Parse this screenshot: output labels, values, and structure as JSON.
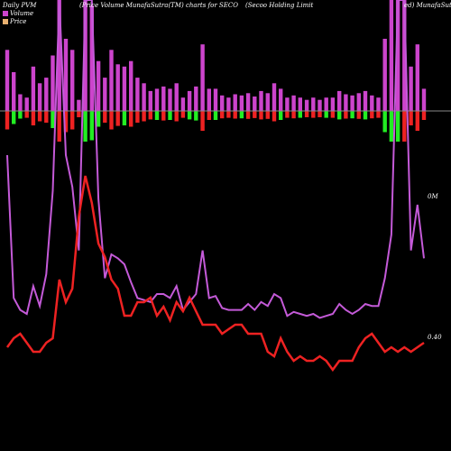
{
  "header": {
    "left": "Daily PVM",
    "center": "(Price Volume MunafaSutra(TM) charts for SECO",
    "right": "(Secoo Holding Limit",
    "far_right": "ed) MunafaSutra"
  },
  "legend": {
    "volume": "Volume",
    "price": "Price"
  },
  "labels": {
    "volume_end": "0M",
    "price_end": "0.40"
  },
  "colors": {
    "background": "#000000",
    "volume": "#cc44cc",
    "volume_line": "#c45ad8",
    "price": "#ee2222",
    "up": "#22ee22",
    "down": "#ee2222",
    "baseline": "#888888"
  },
  "chart_data": {
    "type": "line",
    "title": "",
    "x": [
      1,
      2,
      3,
      4,
      5,
      6,
      7,
      8,
      9,
      10,
      11,
      12,
      13,
      14,
      15,
      16,
      17,
      18,
      19,
      20,
      21,
      22,
      23,
      24,
      25,
      26,
      27,
      28,
      29,
      30,
      31,
      32,
      33,
      34,
      35,
      36,
      37,
      38,
      39,
      40,
      41,
      42,
      43,
      44,
      45,
      46,
      47,
      48,
      49,
      50,
      51,
      52,
      53,
      54,
      55,
      56,
      57,
      58,
      59,
      60,
      61,
      62,
      63,
      64,
      65
    ],
    "series": [
      {
        "name": "Volume",
        "values": [
          0.9,
          0.18,
          0.12,
          0.1,
          0.24,
          0.14,
          0.3,
          0.72,
          1.0,
          0.9,
          0.74,
          0.42,
          1.0,
          0.96,
          0.68,
          0.28,
          0.4,
          0.38,
          0.35,
          0.26,
          0.18,
          0.17,
          0.16,
          0.2,
          0.2,
          0.18,
          0.24,
          0.12,
          0.16,
          0.2,
          0.42,
          0.18,
          0.19,
          0.13,
          0.12,
          0.12,
          0.12,
          0.15,
          0.12,
          0.16,
          0.14,
          0.2,
          0.18,
          0.09,
          0.11,
          0.1,
          0.09,
          0.1,
          0.08,
          0.09,
          0.1,
          0.15,
          0.12,
          0.1,
          0.12,
          0.15,
          0.14,
          0.14,
          0.28,
          0.5,
          0.95,
          1.0,
          0.42,
          0.65,
          0.38
        ]
      },
      {
        "name": "Price",
        "values": [
          0.4,
          0.42,
          0.43,
          0.41,
          0.39,
          0.39,
          0.41,
          0.42,
          0.55,
          0.5,
          0.53,
          0.69,
          0.78,
          0.72,
          0.63,
          0.6,
          0.55,
          0.53,
          0.47,
          0.47,
          0.5,
          0.5,
          0.51,
          0.47,
          0.49,
          0.46,
          0.5,
          0.48,
          0.51,
          0.48,
          0.45,
          0.45,
          0.45,
          0.43,
          0.44,
          0.45,
          0.45,
          0.43,
          0.43,
          0.43,
          0.39,
          0.38,
          0.42,
          0.39,
          0.37,
          0.38,
          0.37,
          0.37,
          0.38,
          0.37,
          0.35,
          0.37,
          0.37,
          0.37,
          0.4,
          0.42,
          0.43,
          0.41,
          0.39,
          0.4,
          0.39,
          0.4,
          0.39,
          0.4,
          0.41
        ]
      }
    ],
    "volume_bars": [
      {
        "magnitude": 0.55,
        "direction": "down"
      },
      {
        "magnitude": 0.35,
        "direction": "up"
      },
      {
        "magnitude": 0.15,
        "direction": "up"
      },
      {
        "magnitude": 0.12,
        "direction": "down"
      },
      {
        "magnitude": 0.4,
        "direction": "down"
      },
      {
        "magnitude": 0.25,
        "direction": "down"
      },
      {
        "magnitude": 0.3,
        "direction": "down"
      },
      {
        "magnitude": 0.5,
        "direction": "up"
      },
      {
        "magnitude": 1.0,
        "direction": "down"
      },
      {
        "magnitude": 0.65,
        "direction": "down"
      },
      {
        "magnitude": 0.55,
        "direction": "down"
      },
      {
        "magnitude": 0.1,
        "direction": "down"
      },
      {
        "magnitude": 1.0,
        "direction": "up"
      },
      {
        "magnitude": 0.95,
        "direction": "up"
      },
      {
        "magnitude": 0.45,
        "direction": "up"
      },
      {
        "magnitude": 0.3,
        "direction": "down"
      },
      {
        "magnitude": 0.55,
        "direction": "down"
      },
      {
        "magnitude": 0.42,
        "direction": "down"
      },
      {
        "magnitude": 0.4,
        "direction": "up"
      },
      {
        "magnitude": 0.45,
        "direction": "down"
      },
      {
        "magnitude": 0.3,
        "direction": "down"
      },
      {
        "magnitude": 0.25,
        "direction": "down"
      },
      {
        "magnitude": 0.18,
        "direction": "down"
      },
      {
        "magnitude": 0.2,
        "direction": "up"
      },
      {
        "magnitude": 0.22,
        "direction": "down"
      },
      {
        "magnitude": 0.2,
        "direction": "up"
      },
      {
        "magnitude": 0.25,
        "direction": "down"
      },
      {
        "magnitude": 0.12,
        "direction": "down"
      },
      {
        "magnitude": 0.18,
        "direction": "up"
      },
      {
        "magnitude": 0.22,
        "direction": "up"
      },
      {
        "magnitude": 0.6,
        "direction": "down"
      },
      {
        "magnitude": 0.2,
        "direction": "down"
      },
      {
        "magnitude": 0.2,
        "direction": "up"
      },
      {
        "magnitude": 0.14,
        "direction": "down"
      },
      {
        "magnitude": 0.12,
        "direction": "down"
      },
      {
        "magnitude": 0.15,
        "direction": "down"
      },
      {
        "magnitude": 0.14,
        "direction": "up"
      },
      {
        "magnitude": 0.16,
        "direction": "down"
      },
      {
        "magnitude": 0.13,
        "direction": "down"
      },
      {
        "magnitude": 0.18,
        "direction": "down"
      },
      {
        "magnitude": 0.16,
        "direction": "down"
      },
      {
        "magnitude": 0.25,
        "direction": "down"
      },
      {
        "magnitude": 0.2,
        "direction": "up"
      },
      {
        "magnitude": 0.12,
        "direction": "down"
      },
      {
        "magnitude": 0.14,
        "direction": "down"
      },
      {
        "magnitude": 0.12,
        "direction": "up"
      },
      {
        "magnitude": 0.1,
        "direction": "down"
      },
      {
        "magnitude": 0.12,
        "direction": "down"
      },
      {
        "magnitude": 0.1,
        "direction": "down"
      },
      {
        "magnitude": 0.12,
        "direction": "up"
      },
      {
        "magnitude": 0.12,
        "direction": "down"
      },
      {
        "magnitude": 0.18,
        "direction": "up"
      },
      {
        "magnitude": 0.15,
        "direction": "down"
      },
      {
        "magnitude": 0.14,
        "direction": "up"
      },
      {
        "magnitude": 0.16,
        "direction": "down"
      },
      {
        "magnitude": 0.18,
        "direction": "up"
      },
      {
        "magnitude": 0.14,
        "direction": "down"
      },
      {
        "magnitude": 0.12,
        "direction": "down"
      },
      {
        "magnitude": 0.65,
        "direction": "up"
      },
      {
        "magnitude": 1.0,
        "direction": "up"
      },
      {
        "magnitude": 1.0,
        "direction": "up"
      },
      {
        "magnitude": 1.0,
        "direction": "down"
      },
      {
        "magnitude": 0.4,
        "direction": "down"
      },
      {
        "magnitude": 0.6,
        "direction": "down"
      },
      {
        "magnitude": 0.2,
        "direction": "down"
      }
    ],
    "grid": false,
    "legend_position": "top-left"
  }
}
